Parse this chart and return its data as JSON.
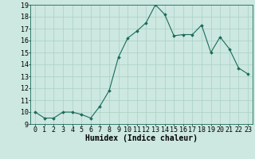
{
  "x": [
    0,
    1,
    2,
    3,
    4,
    5,
    6,
    7,
    8,
    9,
    10,
    11,
    12,
    13,
    14,
    15,
    16,
    17,
    18,
    19,
    20,
    21,
    22,
    23
  ],
  "y": [
    10.0,
    9.5,
    9.5,
    10.0,
    10.0,
    9.8,
    9.5,
    10.5,
    11.8,
    14.6,
    16.2,
    16.8,
    17.5,
    19.0,
    18.2,
    16.4,
    16.5,
    16.5,
    17.3,
    15.0,
    16.3,
    15.3,
    13.7,
    13.2
  ],
  "xlabel": "Humidex (Indice chaleur)",
  "ylim": [
    9,
    19
  ],
  "xlim": [
    -0.5,
    23.5
  ],
  "yticks": [
    9,
    10,
    11,
    12,
    13,
    14,
    15,
    16,
    17,
    18,
    19
  ],
  "xticks": [
    0,
    1,
    2,
    3,
    4,
    5,
    6,
    7,
    8,
    9,
    10,
    11,
    12,
    13,
    14,
    15,
    16,
    17,
    18,
    19,
    20,
    21,
    22,
    23
  ],
  "line_color": "#1a6b5a",
  "marker": "D",
  "marker_size": 1.8,
  "bg_color": "#cce8e0",
  "grid_color": "#aacfc6",
  "xlabel_fontsize": 7,
  "tick_fontsize": 6
}
